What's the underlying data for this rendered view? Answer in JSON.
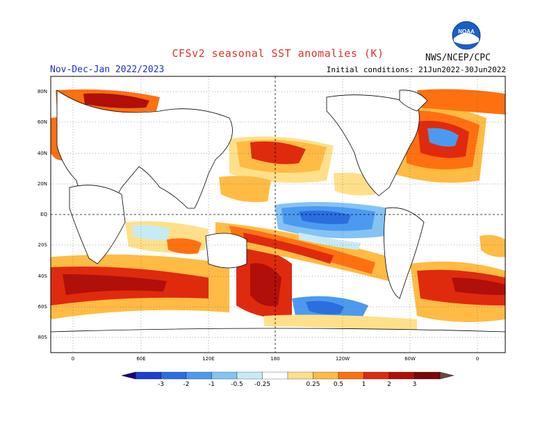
{
  "title": "CFSv2 seasonal SST anomalies (K)",
  "subtitle": "Nov-Dec-Jan 2022/2023",
  "initial_conditions": "Initial conditions: 21Jun2022-30Jun2022",
  "organization": "NWS/NCEP/CPC",
  "logo_text": "NOAA",
  "lat_labels": [
    "80N",
    "60N",
    "40N",
    "20N",
    "EQ",
    "20S",
    "40S",
    "60S",
    "80S"
  ],
  "lon_labels": [
    "0",
    "60E",
    "120E",
    "180",
    "120W",
    "60W",
    "0"
  ],
  "colorbar": {
    "labels": [
      "-3",
      "-2",
      "-1",
      "-0.5",
      "-0.25",
      "0.25",
      "0.5",
      "1",
      "2",
      "3"
    ],
    "colors": [
      "#1a007a",
      "#1f3fcf",
      "#2b6ee0",
      "#4c9af0",
      "#85c3f3",
      "#c6ebf7",
      "#ffffff",
      "#ffe08a",
      "#ffbb44",
      "#ff7011",
      "#e02a0e",
      "#b00f0a",
      "#7a0808",
      "#6b4a3a"
    ]
  }
}
